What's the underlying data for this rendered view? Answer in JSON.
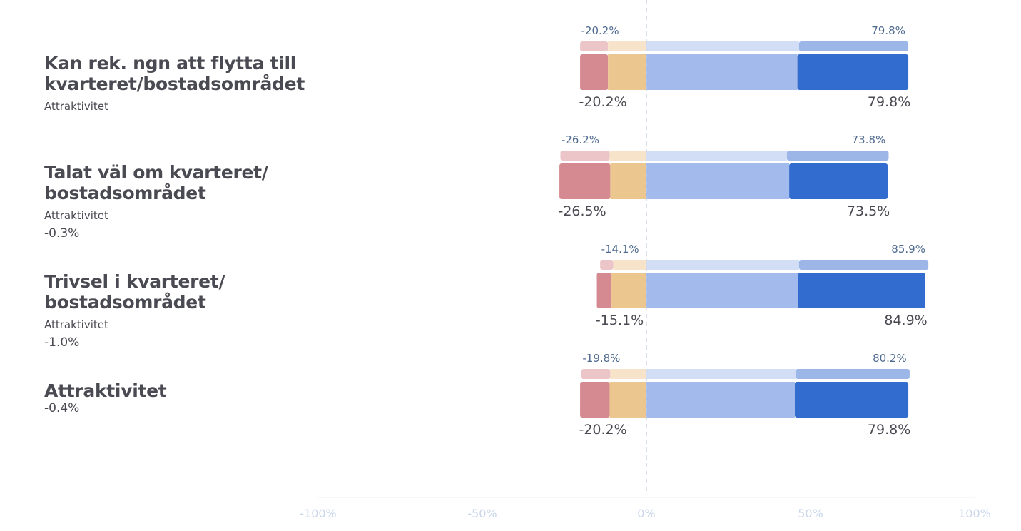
{
  "chart_data": {
    "type": "bar",
    "orientation": "horizontal",
    "stacked": "diverging",
    "xlim": [
      -100,
      100
    ],
    "x_ticks": [
      "-100%",
      "-50%",
      "0%",
      "50%",
      "100%"
    ],
    "segment_colors": {
      "negative_strong": "#d48a90",
      "negative_weak": "#ecc68f",
      "positive_weak": "#a3bbec",
      "positive_strong": "#336ccf",
      "comparison_negative_strong": "#ecc5c8",
      "comparison_negative_weak": "#f7e3c9",
      "comparison_positive_weak": "#d2def5",
      "comparison_positive_strong": "#9cb6e8",
      "comparison_label": "#4f6a8f",
      "main_label": "#4a4a52",
      "axis_label": "#c9d6ea",
      "zero_line": "#cfd8e3"
    },
    "rows": [
      {
        "title": "Kan rek. ngn att flytta till\nkvarteret/bostadsområdet",
        "subtitle": "Attraktivitet",
        "diff": "",
        "comparison": {
          "segments": [
            -8.5,
            -11.7,
            46.5,
            33.3
          ],
          "neg_label": "-20.2%",
          "pos_label": "79.8%"
        },
        "main": {
          "segments": [
            -8.5,
            -11.7,
            46.0,
            33.8
          ],
          "neg_label": "-20.2%",
          "pos_label": "79.8%"
        }
      },
      {
        "title": "Talat väl om kvarteret/\nbostadsområdet",
        "subtitle": "Attraktivitet",
        "diff": "-0.3%",
        "comparison": {
          "segments": [
            -15.0,
            -11.2,
            42.8,
            31.0
          ],
          "neg_label": "-26.2%",
          "pos_label": "73.8%"
        },
        "main": {
          "segments": [
            -15.5,
            -11.0,
            43.5,
            30.0
          ],
          "neg_label": "-26.5%",
          "pos_label": "73.5%"
        }
      },
      {
        "title": "Trivsel i kvarteret/\nbostadsområdet",
        "subtitle": "Attraktivitet",
        "diff": "-1.0%",
        "comparison": {
          "segments": [
            -4.0,
            -10.1,
            46.5,
            39.4
          ],
          "neg_label": "-14.1%",
          "pos_label": "85.9%"
        },
        "main": {
          "segments": [
            -4.5,
            -10.6,
            46.2,
            38.7
          ],
          "neg_label": "-15.1%",
          "pos_label": "84.9%"
        }
      },
      {
        "title": "Attraktivitet",
        "subtitle": "",
        "diff": "-0.4%",
        "comparison": {
          "segments": [
            -8.8,
            -11.0,
            45.5,
            34.7
          ],
          "neg_label": "-19.8%",
          "pos_label": "80.2%"
        },
        "main": {
          "segments": [
            -9.0,
            -11.2,
            45.2,
            34.6
          ],
          "neg_label": "-20.2%",
          "pos_label": "79.8%"
        }
      }
    ]
  }
}
